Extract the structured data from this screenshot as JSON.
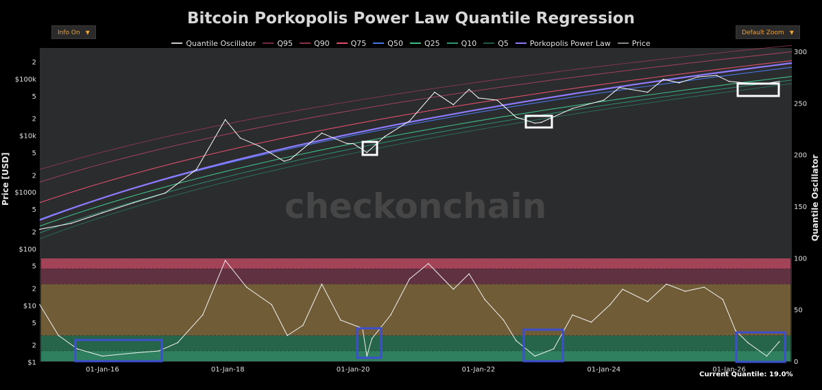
{
  "title": "Bitcoin Porkopolis Power Law Quantile Regression",
  "controls": {
    "info_label": "Info On",
    "zoom_label": "Default Zoom",
    "arrow": "▼"
  },
  "watermark": "checkonchain",
  "footer": {
    "current_quantile": "Current Quantile: 19.0%"
  },
  "colors": {
    "background": "#000000",
    "plot_bg": "#2a2c2e",
    "price": "#ffffff",
    "power_law": "#8f7bff",
    "q95": "#9a3a55",
    "q90": "#b04560",
    "q75": "#e0506a",
    "q50": "#4a78e8",
    "q25": "#3fbf88",
    "q10": "#2e9a76",
    "q5": "#2a7a66",
    "band_top": "#b8485e",
    "band_mid": "#7d6638",
    "band_low": "#2f8f66",
    "highlight_white": "#ffffff",
    "highlight_blue": "#3d4fd0"
  },
  "chart_data": {
    "type": "line",
    "title": "Bitcoin Porkopolis Power Law Quantile Regression",
    "legend_placement": "top",
    "legend": [
      {
        "name": "Quantile Oscillator",
        "color": "#cccccc"
      },
      {
        "name": "Q95",
        "color": "#7a2a40"
      },
      {
        "name": "Q90",
        "color": "#8e3248"
      },
      {
        "name": "Q75",
        "color": "#e0506a"
      },
      {
        "name": "Q50",
        "color": "#4a78e8"
      },
      {
        "name": "Q25",
        "color": "#3fbf88"
      },
      {
        "name": "Q10",
        "color": "#2e9a76"
      },
      {
        "name": "Q5",
        "color": "#1f5a4a"
      },
      {
        "name": "Porkopolis Power Law",
        "color": "#8f7bff"
      },
      {
        "name": "Price",
        "color": "#888888"
      }
    ],
    "x_ticks": [
      "01-Jan-16",
      "01-Jan-18",
      "01-Jan-20",
      "01-Jan-22",
      "01-Jan-24",
      "01-Jan-26"
    ],
    "x_tick_years": [
      2016,
      2018,
      2020,
      2022,
      2024,
      2026
    ],
    "x_range": [
      2015.0,
      2027.0
    ],
    "y_left_label": "Price [USD]",
    "y_left_scale": "log",
    "y_left_ticks": [
      "$1",
      "2",
      "5",
      "$10",
      "2",
      "5",
      "$100",
      "2",
      "5",
      "$1000",
      "2",
      "5",
      "$10k",
      "2",
      "5",
      "$100k",
      "2"
    ],
    "y_left_tick_values": [
      1,
      2,
      5,
      10,
      20,
      50,
      100,
      200,
      500,
      1000,
      2000,
      5000,
      10000,
      20000,
      50000,
      100000,
      200000
    ],
    "y_right_label": "Quantile Oscillator",
    "y_right_ticks": [
      "0",
      "50",
      "100",
      "150",
      "200",
      "250",
      "300"
    ],
    "y_right_tick_values": [
      0,
      50,
      100,
      150,
      200,
      250,
      300
    ],
    "oscillator_range": [
      0,
      100
    ],
    "oscillator_bands": [
      {
        "from": 0,
        "to": 10,
        "color": "#2f8f66"
      },
      {
        "from": 10,
        "to": 25,
        "color": "#26704f"
      },
      {
        "from": 25,
        "to": 75,
        "color": "#7d6638"
      },
      {
        "from": 75,
        "to": 90,
        "color": "#6a3344"
      },
      {
        "from": 90,
        "to": 100,
        "color": "#b8485e"
      }
    ],
    "price": {
      "name": "Price",
      "x": [
        2015.0,
        2015.5,
        2016.0,
        2016.5,
        2017.0,
        2017.5,
        2017.96,
        2018.2,
        2018.5,
        2018.9,
        2019.0,
        2019.5,
        2019.9,
        2020.0,
        2020.22,
        2020.5,
        2020.9,
        2021.3,
        2021.6,
        2021.85,
        2022.0,
        2022.3,
        2022.6,
        2022.9,
        2023.0,
        2023.5,
        2024.0,
        2024.25,
        2024.7,
        2024.95,
        2025.2,
        2025.5,
        2025.8,
        2026.0,
        2026.5,
        2026.8
      ],
      "y": [
        220,
        280,
        430,
        650,
        960,
        2500,
        19000,
        9000,
        6500,
        3500,
        3800,
        11000,
        7200,
        7200,
        5000,
        9500,
        18000,
        58000,
        35000,
        65000,
        46000,
        42000,
        21000,
        16500,
        17000,
        30000,
        42000,
        70000,
        58000,
        98000,
        85000,
        108000,
        115000,
        90000,
        80000,
        90000
      ]
    },
    "oscillator": {
      "name": "Quantile Oscillator",
      "x": [
        2015.0,
        2015.3,
        2015.6,
        2016.0,
        2016.5,
        2016.9,
        2017.2,
        2017.6,
        2017.96,
        2018.3,
        2018.7,
        2018.95,
        2019.2,
        2019.5,
        2019.8,
        2020.15,
        2020.22,
        2020.3,
        2020.6,
        2020.9,
        2021.2,
        2021.6,
        2021.85,
        2022.1,
        2022.4,
        2022.6,
        2022.9,
        2023.2,
        2023.5,
        2023.8,
        2024.1,
        2024.3,
        2024.7,
        2025.0,
        2025.3,
        2025.6,
        2025.9,
        2026.1,
        2026.3,
        2026.6,
        2026.8
      ],
      "y": [
        55,
        25,
        12,
        5,
        8,
        10,
        18,
        45,
        98,
        72,
        55,
        25,
        35,
        75,
        40,
        32,
        5,
        22,
        45,
        80,
        95,
        70,
        85,
        60,
        40,
        20,
        5,
        12,
        45,
        38,
        55,
        70,
        58,
        75,
        68,
        72,
        60,
        30,
        18,
        5,
        19
      ]
    },
    "quantiles": {
      "2015": {
        "Q95": 2500,
        "Q90": 1500,
        "Q75": 650,
        "Q50": 330,
        "Q25": 250,
        "Q10": 190,
        "Q5": 150,
        "PL": 320
      },
      "2027": {
        "Q95": 390000,
        "Q90": 300000,
        "Q75": 210000,
        "Q50": 160000,
        "Q25": 110000,
        "Q10": 95000,
        "Q5": 82000,
        "PL": 190000
      }
    },
    "current_quantile_percent": 19.0
  }
}
